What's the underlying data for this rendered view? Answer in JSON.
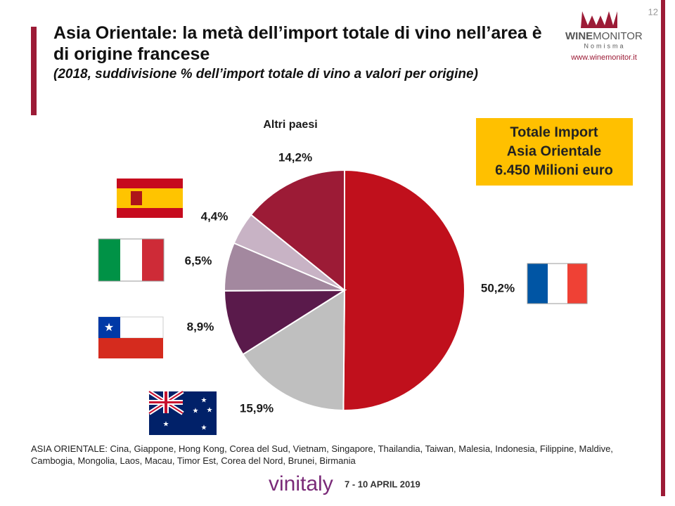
{
  "page_number": "12",
  "logo": {
    "name_bold": "WINE",
    "name_light": "MONITOR",
    "sub": "Nomisma",
    "url": "www.winemonitor.it"
  },
  "info_box": [
    "Totale Import",
    "Asia Orientale",
    "6.450 Milioni euro"
  ],
  "footnote_label": "ASIA ORIENTALE:",
  "footnote": "Cina, Giappone, Hong Kong, Corea del Sud, Vietnam, Singapore, Thailandia, Taiwan, Malesia, Indonesia, Filippine, Maldive, Cambogia, Mongolia, Laos, Macau, Timor Est, Corea del Nord, Brunei, Birmania",
  "footer": {
    "brand": "vinitaly",
    "dates": "7 - 10 APRIL 2019"
  },
  "chart_data": {
    "type": "pie",
    "title": "Asia Orientale: la metà dell’import totale di vino nell’area è di origine francese",
    "subtitle": "(2018, suddivisione % dell’import totale di vino a valori per origine)",
    "categories": [
      null,
      null,
      null,
      null,
      null,
      "Altri paesi"
    ],
    "values": [
      50.2,
      15.9,
      8.9,
      6.5,
      4.4,
      14.2
    ],
    "value_labels": [
      "50,2%",
      "15,9%",
      "8,9%",
      "6,5%",
      "4,4%",
      "14,2%"
    ],
    "colors": [
      "#c0101c",
      "#bfbfbf",
      "#5a1a4b",
      "#a3889f",
      "#c8b3c5",
      "#9c1b36"
    ]
  }
}
